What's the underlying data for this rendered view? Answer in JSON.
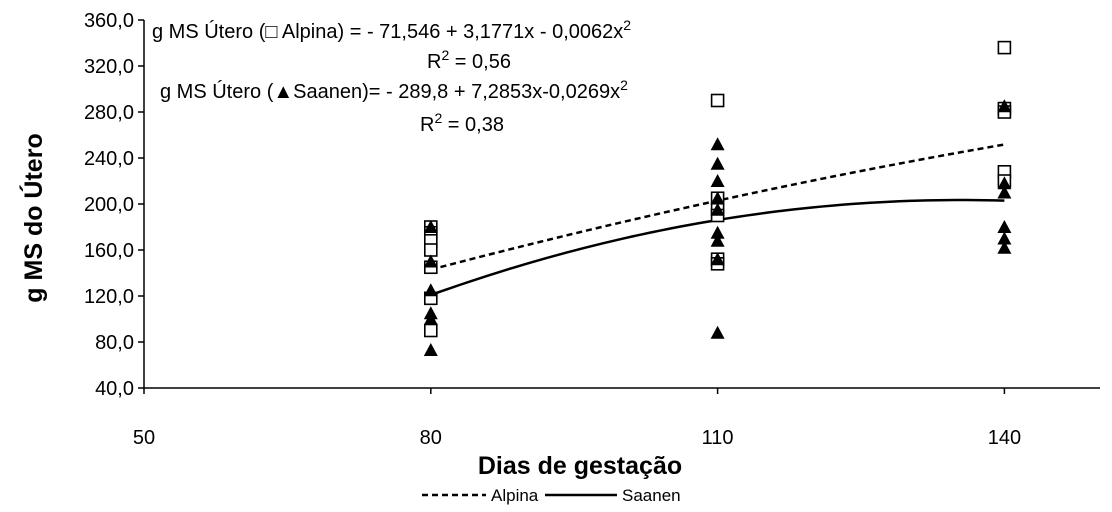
{
  "chart_data": {
    "type": "scatter",
    "title": "",
    "xlabel": "Dias de gestação",
    "ylabel": "g MS do Útero",
    "xlim": [
      50,
      150
    ],
    "ylim": [
      40,
      360
    ],
    "x_ticks": [
      "50",
      "80",
      "110",
      "140"
    ],
    "y_ticks": [
      "40,0",
      "80,0",
      "120,0",
      "160,0",
      "200,0",
      "240,0",
      "280,0",
      "320,0",
      "360,0"
    ],
    "grid": false,
    "legend_position": "bottom",
    "series": [
      {
        "name": "Alpina",
        "marker": "open-square",
        "line_style": "dashed",
        "points": [
          {
            "x": 80,
            "y": 180
          },
          {
            "x": 80,
            "y": 175
          },
          {
            "x": 80,
            "y": 168
          },
          {
            "x": 80,
            "y": 160
          },
          {
            "x": 80,
            "y": 145
          },
          {
            "x": 80,
            "y": 118
          },
          {
            "x": 80,
            "y": 90
          },
          {
            "x": 110,
            "y": 290
          },
          {
            "x": 110,
            "y": 205
          },
          {
            "x": 110,
            "y": 195
          },
          {
            "x": 110,
            "y": 190
          },
          {
            "x": 110,
            "y": 152
          },
          {
            "x": 110,
            "y": 148
          },
          {
            "x": 140,
            "y": 336
          },
          {
            "x": 140,
            "y": 283
          },
          {
            "x": 140,
            "y": 280
          },
          {
            "x": 140,
            "y": 228
          },
          {
            "x": 140,
            "y": 220
          }
        ],
        "fit": [
          -71.546,
          3.1771,
          -0.0062
        ]
      },
      {
        "name": "Saanen",
        "marker": "filled-triangle",
        "line_style": "solid",
        "points": [
          {
            "x": 80,
            "y": 180
          },
          {
            "x": 80,
            "y": 150
          },
          {
            "x": 80,
            "y": 125
          },
          {
            "x": 80,
            "y": 105
          },
          {
            "x": 80,
            "y": 100
          },
          {
            "x": 80,
            "y": 73
          },
          {
            "x": 110,
            "y": 252
          },
          {
            "x": 110,
            "y": 235
          },
          {
            "x": 110,
            "y": 220
          },
          {
            "x": 110,
            "y": 205
          },
          {
            "x": 110,
            "y": 195
          },
          {
            "x": 110,
            "y": 175
          },
          {
            "x": 110,
            "y": 168
          },
          {
            "x": 110,
            "y": 152
          },
          {
            "x": 110,
            "y": 88
          },
          {
            "x": 140,
            "y": 285
          },
          {
            "x": 140,
            "y": 218
          },
          {
            "x": 140,
            "y": 210
          },
          {
            "x": 140,
            "y": 180
          },
          {
            "x": 140,
            "y": 170
          },
          {
            "x": 140,
            "y": 162
          }
        ],
        "fit": [
          -289.8,
          7.2853,
          -0.0269
        ]
      }
    ],
    "annotations": {
      "alpina_eq": "g MS Útero (□ Alpina) = - 71,546  + 3,1771x  - 0,0062x",
      "alpina_r2": "R",
      "alpina_r2_value": " = 0,56",
      "saanen_eq": "g MS Útero (▲Saanen)=  - 289,8  + 7,2853x-0,0269x",
      "saanen_r2": "R",
      "saanen_r2_value": " = 0,38",
      "superscript": "2"
    }
  }
}
